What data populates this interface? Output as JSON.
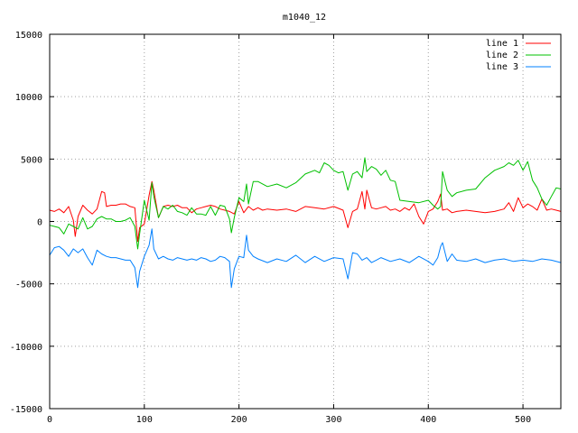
{
  "chart_data": {
    "type": "line",
    "title": "m1040_12",
    "xlabel": "",
    "ylabel": "",
    "xlim": [
      0,
      540
    ],
    "ylim": [
      -15000,
      15000
    ],
    "xticks": [
      0,
      100,
      200,
      300,
      400,
      500
    ],
    "yticks": [
      -15000,
      -10000,
      -5000,
      0,
      5000,
      10000,
      15000
    ],
    "grid": true,
    "legend_position": "top-right",
    "series": [
      {
        "name": "line 1",
        "color": "#ff0000",
        "x": [
          0,
          5,
          10,
          15,
          20,
          25,
          27,
          30,
          35,
          40,
          45,
          50,
          55,
          58,
          60,
          65,
          70,
          75,
          80,
          85,
          90,
          93,
          95,
          100,
          105,
          108,
          110,
          115,
          120,
          125,
          130,
          135,
          140,
          145,
          150,
          155,
          160,
          165,
          170,
          175,
          180,
          185,
          190,
          195,
          200,
          205,
          210,
          215,
          220,
          225,
          230,
          240,
          250,
          260,
          270,
          280,
          290,
          300,
          310,
          315,
          320,
          325,
          330,
          333,
          335,
          340,
          345,
          350,
          355,
          360,
          365,
          370,
          375,
          380,
          385,
          390,
          395,
          400,
          405,
          410,
          413,
          415,
          420,
          425,
          430,
          440,
          450,
          460,
          470,
          480,
          485,
          490,
          495,
          500,
          505,
          510,
          515,
          520,
          525,
          530,
          535,
          540
        ],
        "values": [
          900,
          800,
          1000,
          700,
          1200,
          100,
          -1200,
          400,
          1300,
          900,
          600,
          1000,
          2400,
          2300,
          1200,
          1300,
          1300,
          1400,
          1400,
          1200,
          1100,
          -1600,
          -500,
          -200,
          2100,
          3200,
          2500,
          300,
          1200,
          1300,
          1200,
          1300,
          1100,
          1100,
          700,
          1000,
          1100,
          1200,
          1300,
          1200,
          1000,
          900,
          800,
          600,
          1600,
          700,
          1200,
          900,
          1100,
          900,
          1000,
          900,
          1000,
          800,
          1200,
          1100,
          1000,
          1200,
          900,
          -500,
          800,
          1000,
          2400,
          1000,
          2500,
          1100,
          1000,
          1100,
          1200,
          900,
          1000,
          800,
          1100,
          900,
          1400,
          400,
          -200,
          800,
          1000,
          1600,
          2200,
          900,
          1000,
          700,
          800,
          900,
          800,
          700,
          800,
          1000,
          1500,
          800,
          1900,
          1100,
          1400,
          1200,
          900,
          1800,
          900,
          1000,
          900,
          800
        ]
      },
      {
        "name": "line 2",
        "color": "#00c000",
        "x": [
          0,
          5,
          10,
          15,
          20,
          25,
          30,
          35,
          40,
          45,
          50,
          55,
          60,
          65,
          70,
          75,
          80,
          85,
          90,
          93,
          95,
          100,
          105,
          108,
          110,
          115,
          120,
          125,
          130,
          135,
          140,
          145,
          150,
          155,
          160,
          165,
          170,
          175,
          180,
          185,
          190,
          192,
          195,
          200,
          205,
          208,
          210,
          215,
          220,
          230,
          240,
          250,
          260,
          270,
          280,
          285,
          290,
          295,
          300,
          305,
          310,
          315,
          320,
          325,
          330,
          333,
          335,
          340,
          345,
          350,
          355,
          360,
          365,
          370,
          380,
          390,
          400,
          405,
          410,
          413,
          415,
          420,
          425,
          430,
          440,
          450,
          460,
          470,
          480,
          485,
          490,
          495,
          500,
          505,
          510,
          515,
          520,
          525,
          530,
          535,
          540
        ],
        "values": [
          -300,
          -400,
          -500,
          -1000,
          -200,
          -400,
          -600,
          300,
          -600,
          -400,
          200,
          400,
          200,
          200,
          0,
          0,
          100,
          300,
          -400,
          -2200,
          -1000,
          1700,
          100,
          3100,
          2000,
          300,
          1200,
          1000,
          1300,
          800,
          700,
          500,
          1100,
          600,
          600,
          500,
          1200,
          500,
          1300,
          1200,
          200,
          -900,
          300,
          1900,
          1600,
          3000,
          1400,
          3200,
          3200,
          2800,
          3000,
          2700,
          3100,
          3800,
          4100,
          3900,
          4700,
          4500,
          4100,
          3900,
          4000,
          2500,
          3800,
          4000,
          3500,
          5100,
          4000,
          4400,
          4200,
          3700,
          4100,
          3300,
          3200,
          1700,
          1600,
          1500,
          1700,
          1300,
          1000,
          1200,
          4000,
          2500,
          2000,
          2300,
          2500,
          2600,
          3500,
          4100,
          4400,
          4700,
          4500,
          4900,
          4100,
          4800,
          3300,
          2700,
          1800,
          1300,
          2000,
          2700,
          2600
        ]
      },
      {
        "name": "line 3",
        "color": "#0080ff",
        "x": [
          0,
          5,
          10,
          15,
          20,
          25,
          30,
          35,
          40,
          45,
          50,
          55,
          60,
          65,
          70,
          75,
          80,
          85,
          90,
          93,
          95,
          100,
          105,
          108,
          110,
          115,
          120,
          125,
          130,
          135,
          140,
          145,
          150,
          155,
          160,
          165,
          170,
          175,
          180,
          185,
          190,
          192,
          195,
          200,
          205,
          208,
          210,
          215,
          220,
          230,
          240,
          250,
          260,
          270,
          280,
          290,
          300,
          310,
          315,
          320,
          325,
          330,
          335,
          340,
          345,
          350,
          360,
          370,
          380,
          390,
          400,
          405,
          410,
          413,
          415,
          420,
          425,
          430,
          440,
          450,
          460,
          470,
          480,
          490,
          500,
          510,
          520,
          530,
          540
        ],
        "values": [
          -2700,
          -2100,
          -2000,
          -2300,
          -2800,
          -2200,
          -2500,
          -2200,
          -2900,
          -3500,
          -2300,
          -2600,
          -2800,
          -2900,
          -2900,
          -3000,
          -3100,
          -3100,
          -3700,
          -5300,
          -4000,
          -2800,
          -1900,
          -600,
          -2200,
          -3000,
          -2800,
          -3000,
          -3100,
          -2900,
          -3000,
          -3100,
          -3000,
          -3100,
          -2900,
          -3000,
          -3200,
          -3100,
          -2800,
          -2900,
          -3200,
          -5300,
          -3800,
          -2800,
          -2900,
          -1100,
          -2300,
          -2800,
          -3000,
          -3300,
          -3000,
          -3200,
          -2700,
          -3300,
          -2800,
          -3200,
          -2900,
          -3000,
          -4600,
          -2500,
          -2600,
          -3100,
          -2900,
          -3300,
          -3100,
          -2900,
          -3200,
          -3000,
          -3300,
          -2800,
          -3200,
          -3500,
          -2900,
          -2000,
          -1700,
          -3200,
          -2600,
          -3100,
          -3200,
          -3000,
          -3300,
          -3100,
          -3000,
          -3200,
          -3100,
          -3200,
          -3000,
          -3100,
          -3300
        ]
      }
    ]
  }
}
